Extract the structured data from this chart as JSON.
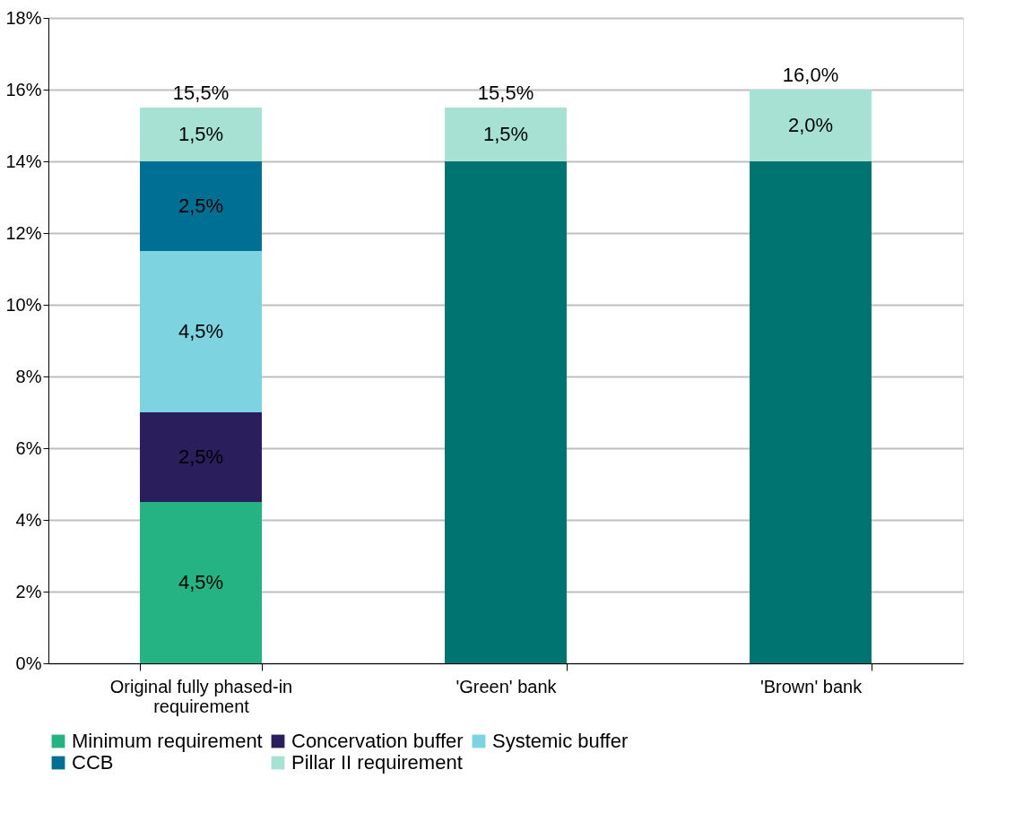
{
  "chart_data": {
    "type": "bar",
    "stacked": true,
    "categories": [
      "Original fully phased-in requirement",
      "'Green' bank",
      "'Brown' bank"
    ],
    "series": [
      {
        "color": "#007470",
        "values": [
          null,
          14,
          14
        ]
      },
      {
        "name": "Minimum requirement",
        "color": "#26b383",
        "values": [
          4.5,
          null,
          null
        ],
        "value_labels": [
          "4,5%",
          null,
          null
        ]
      },
      {
        "name": "Concervation buffer",
        "color": "#2a1f5c",
        "values": [
          2.5,
          null,
          null
        ],
        "value_labels": [
          "2,5%",
          null,
          null
        ]
      },
      {
        "name": "Systemic buffer",
        "color": "#7dd3df",
        "values": [
          4.5,
          null,
          null
        ],
        "value_labels": [
          "4,5%",
          null,
          null
        ]
      },
      {
        "name": "CCB",
        "color": "#006f94",
        "values": [
          2.5,
          null,
          null
        ],
        "value_labels": [
          "2,5%",
          null,
          null
        ]
      },
      {
        "name": "Pillar II requirement",
        "color": "#a6e1d3",
        "values": [
          1.5,
          1.5,
          2.0
        ],
        "value_labels": [
          "1,5%",
          "1,5%",
          "2,0%"
        ]
      }
    ],
    "totals": [
      "15,5%",
      "15,5%",
      "16,0%"
    ],
    "ylim": [
      0,
      18
    ],
    "yticks": [
      {
        "value": 0,
        "label": "0%"
      },
      {
        "value": 2,
        "label": "2%"
      },
      {
        "value": 4,
        "label": "4%"
      },
      {
        "value": 6,
        "label": "6%"
      },
      {
        "value": 8,
        "label": "8%"
      },
      {
        "value": 10,
        "label": "10%"
      },
      {
        "value": 12,
        "label": "12%"
      },
      {
        "value": 14,
        "label": "14%"
      },
      {
        "value": 16,
        "label": "16%"
      },
      {
        "value": 18,
        "label": "18%"
      }
    ],
    "grid": "y",
    "legend": "bottom"
  }
}
